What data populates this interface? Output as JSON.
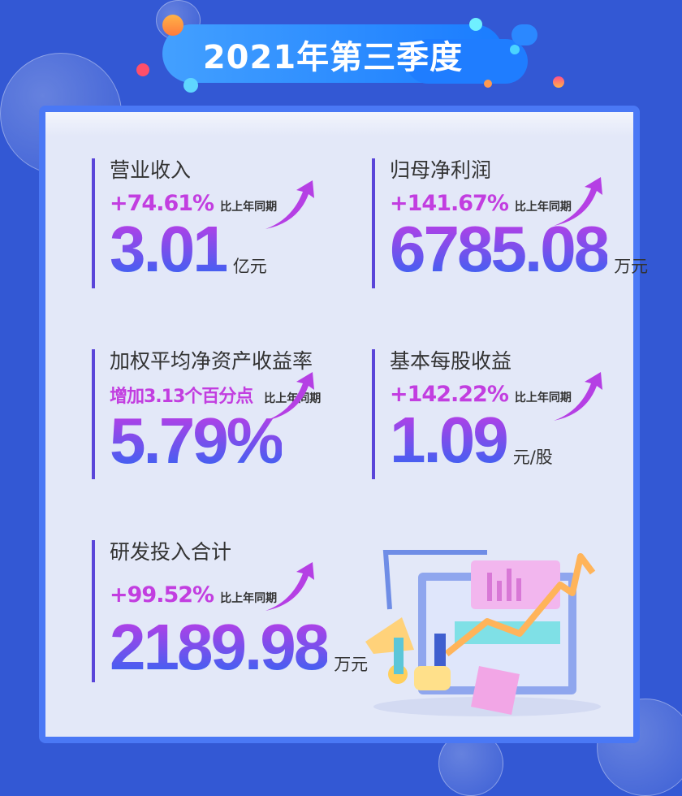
{
  "header": {
    "title": "2021年第三季度"
  },
  "colors": {
    "background": "#3358d4",
    "panel_border": "#4a78f5",
    "accent_purple": "#c23ee0",
    "gradient_top": "#b83ee6",
    "gradient_bottom": "#3a62f2"
  },
  "metrics": [
    {
      "title": "营业收入",
      "change": "+74.61%",
      "comparison": "比上年同期",
      "value": "3.01",
      "unit": "亿元",
      "icon": "trend-up-arrow-icon"
    },
    {
      "title": "归母净利润",
      "change": "+141.67%",
      "comparison": "比上年同期",
      "value": "6785.08",
      "unit": "万元",
      "icon": "trend-up-arrow-icon"
    },
    {
      "title": "加权平均净资产收益率",
      "change": "增加3.13个百分点",
      "comparison": "比上年同期",
      "value": "5.79%",
      "unit": "",
      "icon": "trend-up-arrow-icon"
    },
    {
      "title": "基本每股收益",
      "change": "+142.22%",
      "comparison": "比上年同期",
      "value": "1.09",
      "unit": "元/股",
      "icon": "trend-up-arrow-icon"
    },
    {
      "title": "研发投入合计",
      "change": "+99.52%",
      "comparison": "比上年同期",
      "value": "2189.98",
      "unit": "万元",
      "icon": "trend-up-arrow-icon"
    }
  ],
  "illustration": "business-growth-illustration"
}
